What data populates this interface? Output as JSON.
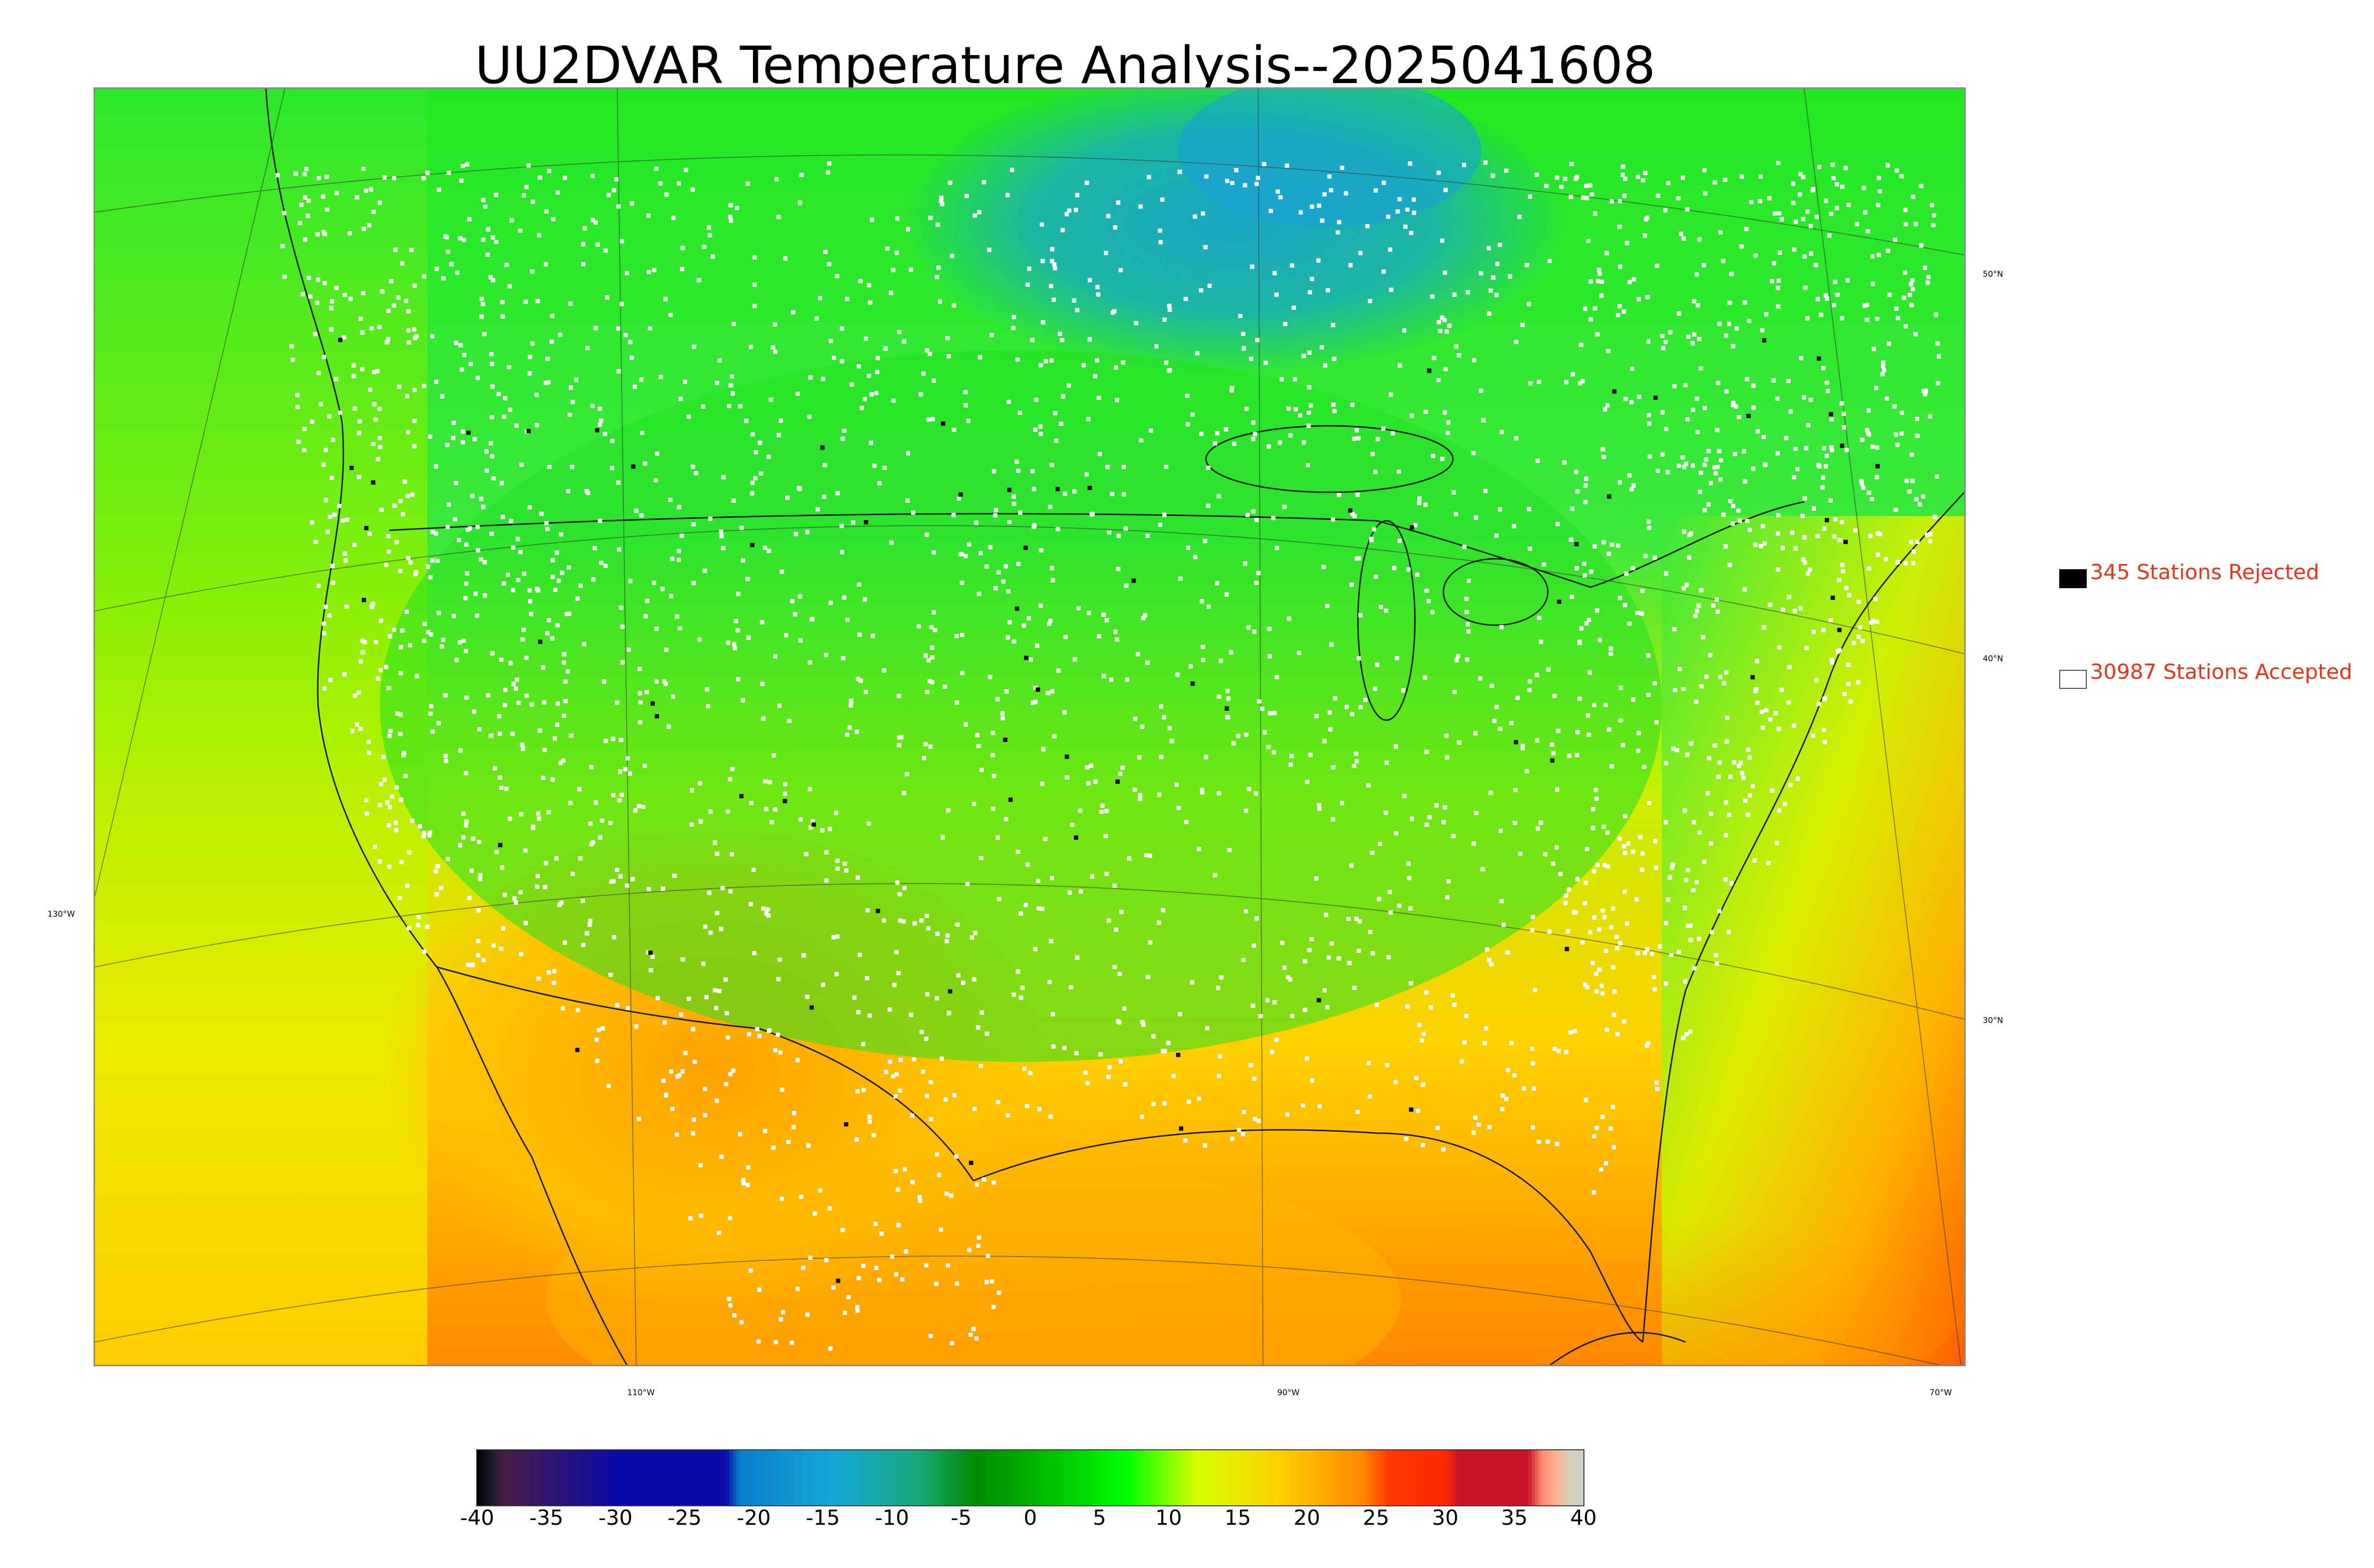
{
  "title": "UU2DVAR Temperature Analysis--2025041608",
  "map": {
    "latitude_labels": [
      "50°N",
      "40°N",
      "30°N"
    ],
    "longitude_labels": [
      "130°W",
      "110°W",
      "90°W",
      "70°W"
    ],
    "field": "temperature",
    "station_markers": {
      "accepted_color": "#ffffff",
      "rejected_color": "#000000"
    }
  },
  "legend": {
    "rejected": {
      "label": "345 Stations Rejected",
      "count": 345,
      "swatch_color": "#000000"
    },
    "accepted": {
      "label": "30987 Stations Accepted",
      "count": 30987,
      "swatch_color": "#ffffff"
    }
  },
  "colorbar": {
    "ticks": [
      "-40",
      "-35",
      "-30",
      "-25",
      "-20",
      "-15",
      "-10",
      "-5",
      "0",
      "5",
      "10",
      "15",
      "20",
      "25",
      "30",
      "35",
      "40"
    ],
    "min": -40,
    "max": 40,
    "stops": [
      {
        "value": -40,
        "color": "#000000"
      },
      {
        "value": -39,
        "color": "#1a1a2e"
      },
      {
        "value": -38,
        "color": "#4a1e47"
      },
      {
        "value": -30,
        "color": "#0a0aa8"
      },
      {
        "value": -22,
        "color": "#0a0aa8"
      },
      {
        "value": -21,
        "color": "#0a80cc"
      },
      {
        "value": -14,
        "color": "#15a8d6"
      },
      {
        "value": -8,
        "color": "#18a87a"
      },
      {
        "value": -4,
        "color": "#008a00"
      },
      {
        "value": 0,
        "color": "#00b000"
      },
      {
        "value": 7,
        "color": "#00ff00"
      },
      {
        "value": 12,
        "color": "#d4ff00"
      },
      {
        "value": 18,
        "color": "#ffd000"
      },
      {
        "value": 24,
        "color": "#ff8a00"
      },
      {
        "value": 26,
        "color": "#ff3800"
      },
      {
        "value": 30,
        "color": "#ff2800"
      },
      {
        "value": 31,
        "color": "#cc1428"
      },
      {
        "value": 36,
        "color": "#cc1428"
      },
      {
        "value": 37,
        "color": "#ff8c70"
      },
      {
        "value": 38,
        "color": "#ffb090"
      },
      {
        "value": 39,
        "color": "#d6d0b8"
      },
      {
        "value": 40,
        "color": "#d0d0c8"
      }
    ]
  }
}
